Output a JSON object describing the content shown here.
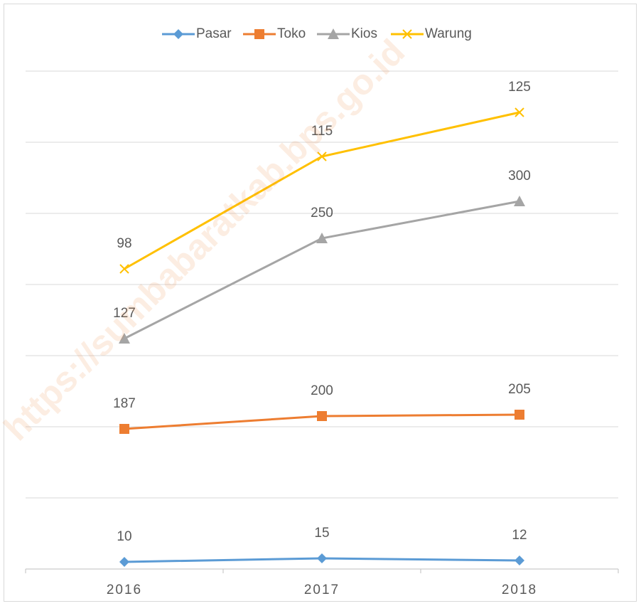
{
  "chart_data": {
    "type": "stacked_line",
    "categories": [
      "2016",
      "2017",
      "2018"
    ],
    "series": [
      {
        "name": "Pasar",
        "color": "#5b9bd5",
        "marker": "diamond",
        "values": [
          10,
          15,
          12
        ]
      },
      {
        "name": "Toko",
        "color": "#ed7d31",
        "marker": "square",
        "values": [
          187,
          200,
          205
        ]
      },
      {
        "name": "Kios",
        "color": "#a5a5a5",
        "marker": "triangle",
        "values": [
          127,
          250,
          300
        ]
      },
      {
        "name": "Warung",
        "color": "#ffc000",
        "marker": "x",
        "values": [
          98,
          115,
          125
        ]
      }
    ],
    "ylim": [
      0,
      700
    ],
    "yticks": [
      0,
      100,
      200,
      300,
      400,
      500,
      600,
      700
    ],
    "ytick_labels": false,
    "grid": true,
    "legend": "top",
    "watermark": "https://sumbabaratkab.bps.go.id"
  }
}
